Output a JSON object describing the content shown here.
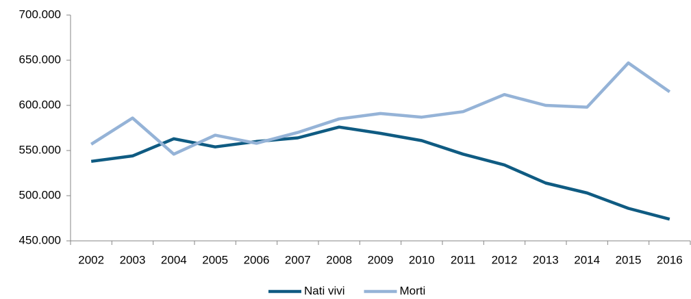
{
  "chart_data": {
    "type": "line",
    "categories": [
      "2002",
      "2003",
      "2004",
      "2005",
      "2006",
      "2007",
      "2008",
      "2009",
      "2010",
      "2011",
      "2012",
      "2013",
      "2014",
      "2015",
      "2016"
    ],
    "series": [
      {
        "name": "Nati vivi",
        "color": "#0f5b82",
        "values": [
          538000,
          544000,
          563000,
          554000,
          560000,
          564000,
          576000,
          569000,
          561000,
          546000,
          534000,
          514000,
          503000,
          486000,
          474000
        ]
      },
      {
        "name": "Morti",
        "color": "#95b3d7",
        "values": [
          557000,
          586000,
          546000,
          567000,
          558000,
          570000,
          585000,
          591000,
          587000,
          593000,
          612000,
          600000,
          598000,
          647000,
          615000
        ]
      }
    ],
    "ylim": [
      450000,
      700000
    ],
    "yticks": [
      {
        "value": 450000,
        "label": "450.000"
      },
      {
        "value": 500000,
        "label": "500.000"
      },
      {
        "value": 550000,
        "label": "550.000"
      },
      {
        "value": 600000,
        "label": "600.000"
      },
      {
        "value": 650000,
        "label": "650.000"
      },
      {
        "value": 700000,
        "label": "700.000"
      }
    ],
    "grid": false,
    "legend": "bottom"
  }
}
